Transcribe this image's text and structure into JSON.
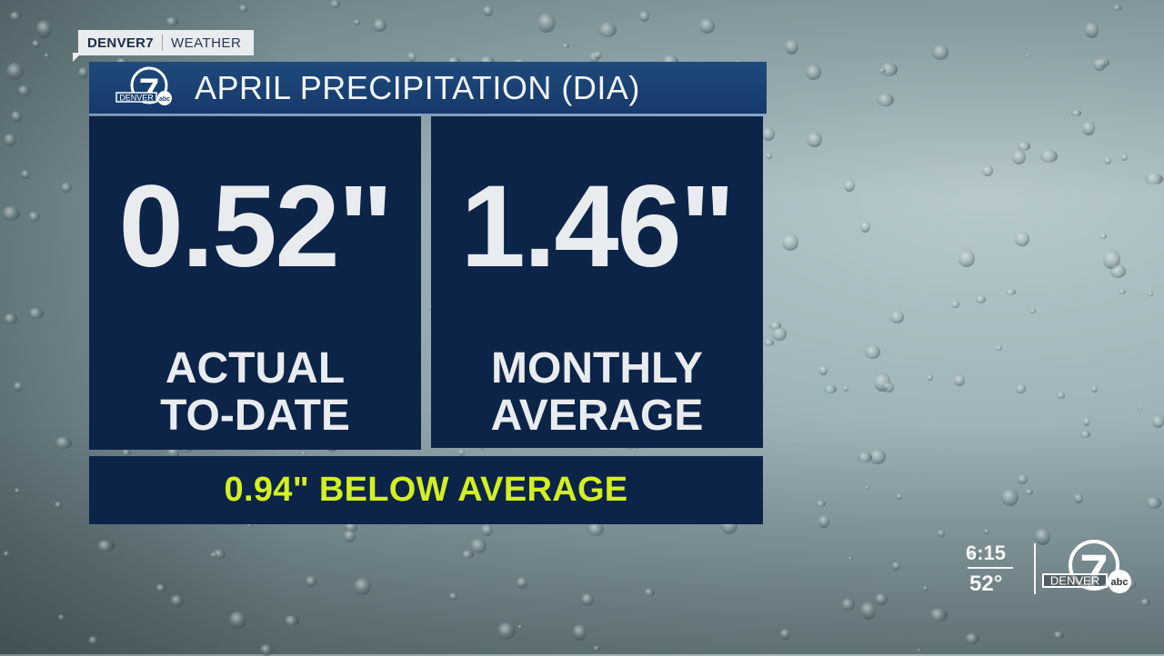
{
  "brand_tag": {
    "station": "DENVER7",
    "section": "WEATHER"
  },
  "graphic": {
    "title": "APRIL PRECIPITATION (DIA)",
    "logo": {
      "name": "denver7-abc-logo",
      "text": "DENVER",
      "numeral": "7",
      "network": "abc"
    },
    "panels": [
      {
        "value": "0.52\"",
        "label_line1": "ACTUAL",
        "label_line2": "TO-DATE"
      },
      {
        "value": "1.46\"",
        "label_line1": "MONTHLY",
        "label_line2": "AVERAGE"
      }
    ],
    "summary": "0.94\" BELOW AVERAGE",
    "colors": {
      "panel": "#0d2449",
      "title_bar": "#1a416f",
      "summary_text": "#d4ef22",
      "value_text": "#e9ecef"
    }
  },
  "bug": {
    "time": "6:15",
    "temperature": "52°",
    "logo_text": "DENVER",
    "logo_numeral": "7",
    "logo_network": "abc"
  }
}
